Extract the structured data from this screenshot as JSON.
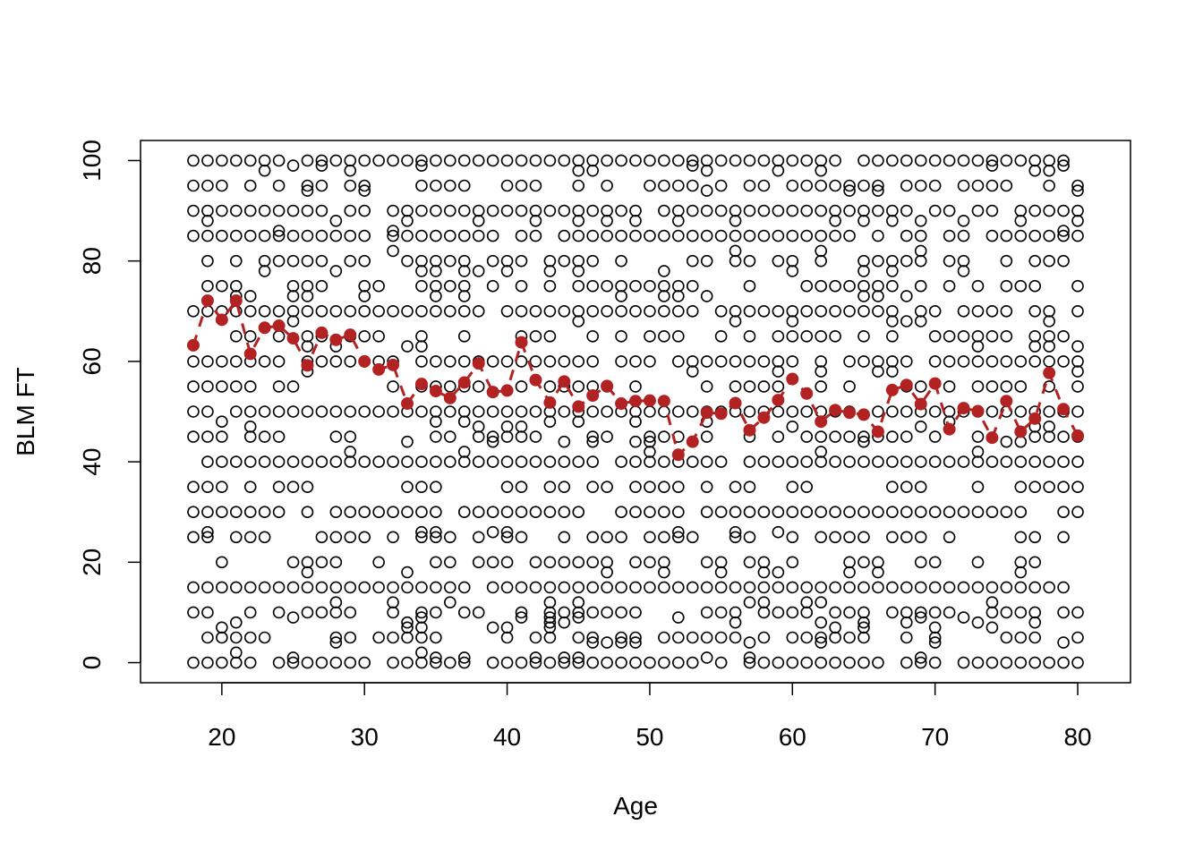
{
  "chart_data": {
    "type": "scatter",
    "title": "",
    "xlabel": "Age",
    "ylabel": "BLM FT",
    "xlim": [
      14.3,
      83.7
    ],
    "ylim": [
      -4,
      104
    ],
    "x_ticks": [
      20,
      30,
      40,
      50,
      60,
      70,
      80
    ],
    "y_ticks": [
      0,
      20,
      40,
      60,
      80,
      100
    ],
    "grid": false,
    "legend": "none",
    "colors": {
      "points": "#000000",
      "means": "#b22222",
      "axis": "#000000"
    },
    "scatter": {
      "name": "",
      "x_range": [
        18,
        80
      ],
      "common_values": [
        0,
        15,
        30,
        40,
        50,
        60,
        70,
        85,
        90,
        100
      ],
      "secondary_values": [
        5,
        10,
        20,
        25,
        35,
        45,
        55,
        65,
        75,
        80,
        95
      ],
      "rare_values": [
        1,
        2,
        4,
        7,
        8,
        9,
        12,
        18,
        26,
        42,
        44,
        47,
        48,
        58,
        63,
        68,
        73,
        78,
        82,
        86,
        88,
        94,
        98,
        99
      ]
    },
    "mean_series": {
      "name": "",
      "x": [
        18,
        19,
        20,
        21,
        22,
        23,
        24,
        25,
        26,
        27,
        28,
        29,
        30,
        31,
        32,
        33,
        34,
        35,
        36,
        37,
        38,
        39,
        40,
        41,
        42,
        43,
        44,
        45,
        46,
        47,
        48,
        49,
        50,
        51,
        52,
        53,
        54,
        55,
        56,
        57,
        58,
        59,
        60,
        61,
        62,
        63,
        64,
        65,
        66,
        67,
        68,
        69,
        70,
        71,
        72,
        73,
        74,
        75,
        76,
        77,
        78,
        79,
        80
      ],
      "y": [
        63.2,
        72.1,
        68.3,
        72.1,
        61.5,
        66.7,
        67.1,
        64.6,
        59.2,
        65.7,
        64.3,
        65.3,
        60.0,
        58.4,
        59.3,
        51.6,
        55.5,
        54.1,
        52.7,
        55.8,
        59.6,
        53.9,
        54.2,
        63.8,
        56.3,
        51.8,
        56.0,
        51.0,
        53.2,
        55.1,
        51.6,
        52.1,
        52.2,
        52.1,
        41.4,
        44.0,
        49.8,
        49.6,
        51.7,
        46.3,
        48.8,
        52.3,
        56.5,
        53.6,
        48.0,
        50.3,
        49.8,
        49.4,
        46.0,
        54.3,
        55.3,
        51.5,
        55.6,
        46.5,
        50.7,
        50.1,
        44.8,
        52.1,
        46.0,
        48.6,
        57.7,
        50.5,
        45.2
      ]
    }
  }
}
